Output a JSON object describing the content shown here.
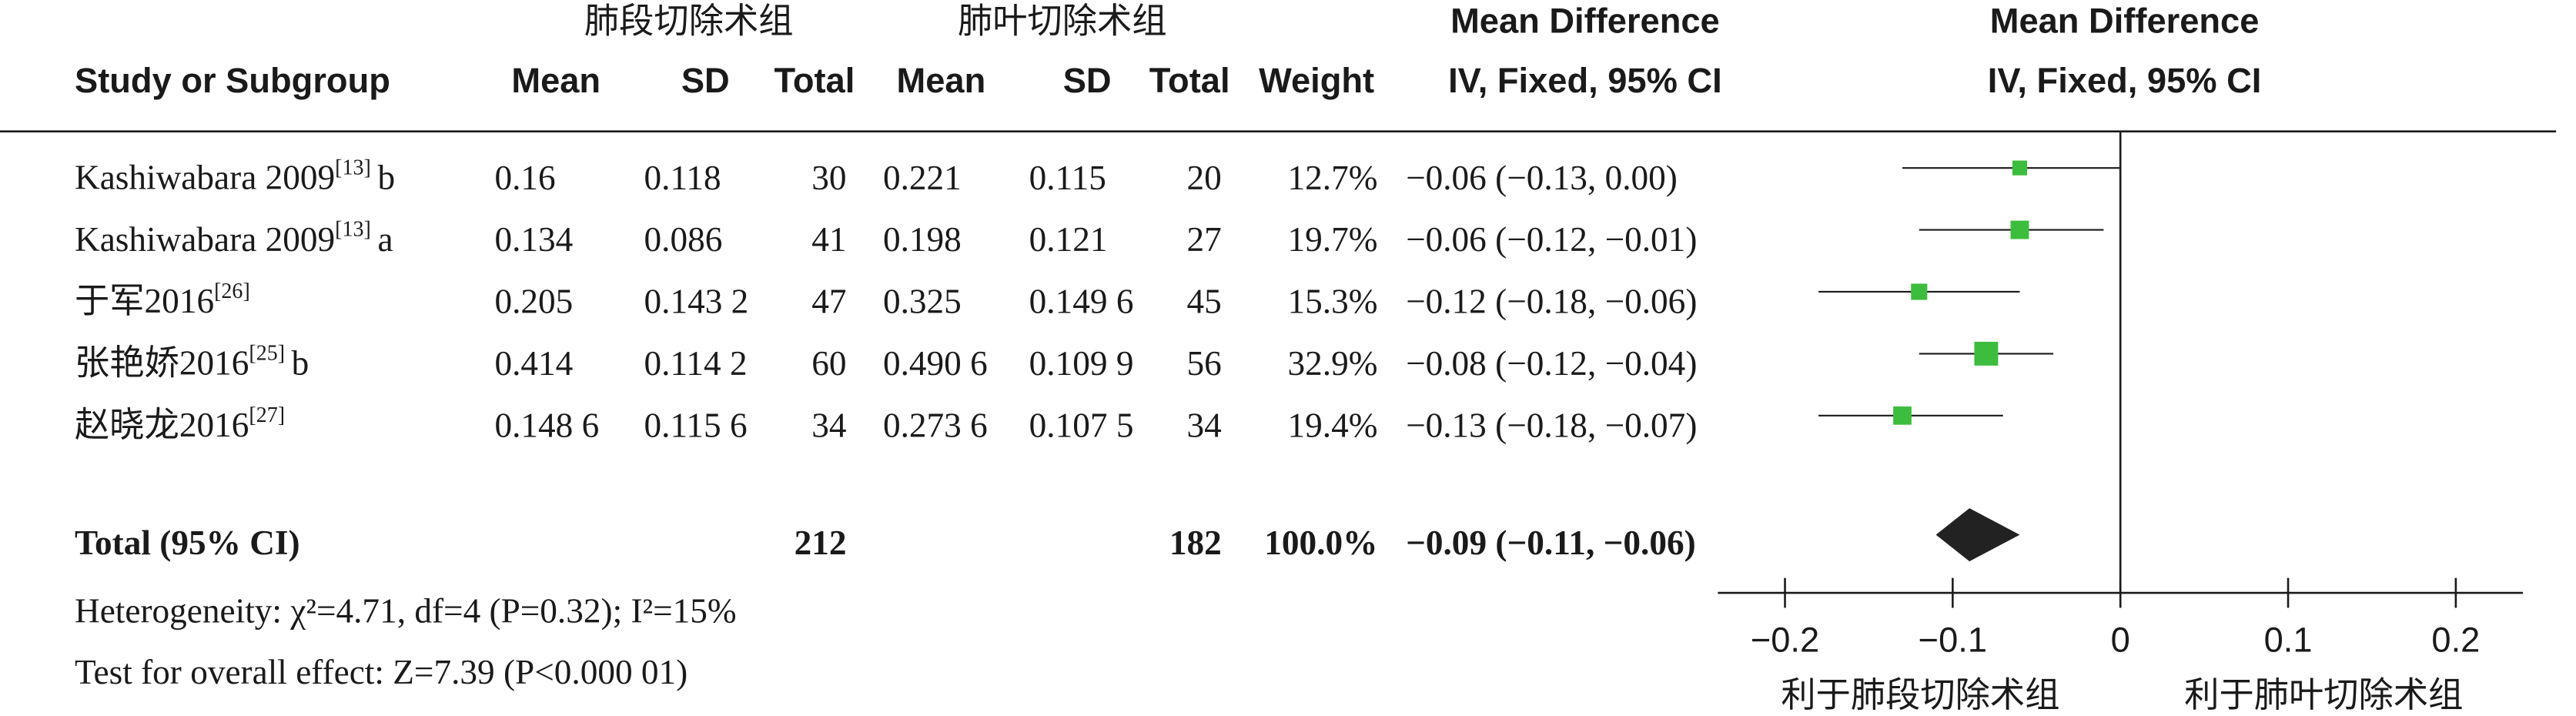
{
  "chart_data": {
    "type": "forest",
    "group_headers": [
      "肺段切除术组",
      "肺叶切除术组"
    ],
    "effect_header": {
      "title": "Mean Difference",
      "subtitle": "IV, Fixed, 95% CI"
    },
    "columns": [
      "Study or Subgroup",
      "Mean",
      "SD",
      "Total",
      "Mean",
      "SD",
      "Total",
      "Weight"
    ],
    "studies": [
      {
        "study": "Kashiwabara 2009",
        "ref": "[13]",
        "suffix": "b",
        "mean1": 0.16,
        "sd1": 0.118,
        "n1": 30,
        "mean2": 0.221,
        "sd2": 0.115,
        "n2": 20,
        "weight": {
          "value": 12.7,
          "label": "12.7%"
        },
        "md": -0.06,
        "ci_lower": -0.13,
        "ci_upper": 0.0,
        "ci_label": "−0.06 (−0.13, 0.00)"
      },
      {
        "study": "Kashiwabara 2009",
        "ref": "[13]",
        "suffix": "a",
        "mean1": 0.134,
        "sd1": 0.086,
        "n1": 41,
        "mean2": 0.198,
        "sd2": 0.121,
        "n2": 27,
        "weight": {
          "value": 19.7,
          "label": "19.7%"
        },
        "md": -0.06,
        "ci_lower": -0.12,
        "ci_upper": -0.01,
        "ci_label": "−0.06 (−0.12, −0.01)"
      },
      {
        "study": "于军2016",
        "ref": "[26]",
        "mean1": 0.205,
        "sd1": {
          "value": 0.1432,
          "label": "0.143 2"
        },
        "n1": 47,
        "mean2": 0.325,
        "sd2": {
          "value": 0.1496,
          "label": "0.149 6"
        },
        "n2": 45,
        "weight": {
          "value": 15.3,
          "label": "15.3%"
        },
        "md": -0.12,
        "ci_lower": -0.18,
        "ci_upper": -0.06,
        "ci_label": "−0.12 (−0.18, −0.06)"
      },
      {
        "study": "张艳娇2016",
        "ref": "[25]",
        "suffix": "b",
        "mean1": 0.414,
        "sd1": {
          "value": 0.1142,
          "label": "0.114 2"
        },
        "n1": 60,
        "mean2": {
          "value": 0.4906,
          "label": "0.490 6"
        },
        "sd2": {
          "value": 0.1099,
          "label": "0.109 9"
        },
        "n2": 56,
        "weight": {
          "value": 32.9,
          "label": "32.9%"
        },
        "md": -0.08,
        "ci_lower": -0.12,
        "ci_upper": -0.04,
        "ci_label": "−0.08 (−0.12, −0.04)"
      },
      {
        "study": "赵晓龙2016",
        "ref": "[27]",
        "mean1": {
          "value": 0.1486,
          "label": "0.148 6"
        },
        "sd1": {
          "value": 0.1156,
          "label": "0.115 6"
        },
        "n1": 34,
        "mean2": {
          "value": 0.2736,
          "label": "0.273 6"
        },
        "sd2": {
          "value": 0.1075,
          "label": "0.107 5"
        },
        "n2": 34,
        "weight": {
          "value": 19.4,
          "label": "19.4%"
        },
        "md": -0.13,
        "ci_lower": -0.18,
        "ci_upper": -0.07,
        "ci_label": "−0.13 (−0.18, −0.07)"
      }
    ],
    "total": {
      "label": "Total (95% CI)",
      "n1": 212,
      "n2": 182,
      "weight": {
        "value": 100.0,
        "label": "100.0%"
      },
      "md": -0.09,
      "ci_lower": -0.11,
      "ci_upper": -0.06,
      "ci_label": "−0.09 (−0.11, −0.06)"
    },
    "heterogeneity": "Heterogeneity: χ²=4.71, df=4 (P=0.32); I²=15%",
    "overall_effect": "Test for overall effect: Z=7.39 (P<0.000 01)",
    "xlim": [
      -0.24,
      0.24
    ],
    "xticks": [
      {
        "value": -0.2,
        "label": "−0.2"
      },
      {
        "value": -0.1,
        "label": "−0.1"
      },
      0,
      0.1,
      0.2
    ],
    "x_labels": [
      "利于肺段切除术组",
      "利于肺叶切除术组"
    ],
    "square_color": "#3dbd3d",
    "diamond_color": "#222222"
  }
}
